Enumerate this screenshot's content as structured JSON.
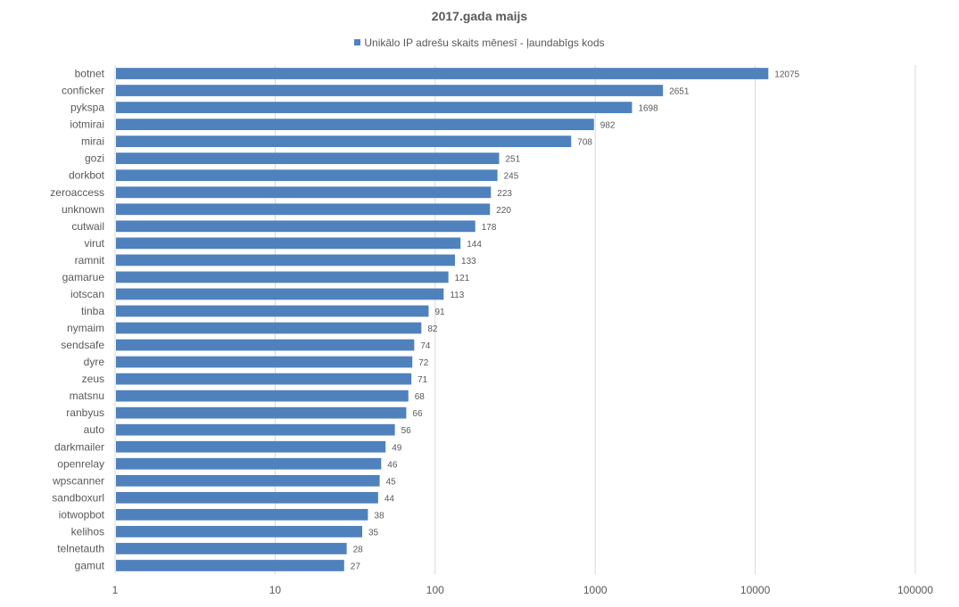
{
  "chart_data": {
    "type": "bar",
    "orientation": "horizontal",
    "title": "2017.gada maijs",
    "xscale": "log",
    "xlim": [
      1,
      100000
    ],
    "xticks": [
      "1",
      "10",
      "100",
      "1000",
      "10000",
      "100000"
    ],
    "grid": true,
    "legend_position": "top",
    "categories": [
      "botnet",
      "conficker",
      "pykspa",
      "iotmirai",
      "mirai",
      "gozi",
      "dorkbot",
      "zeroaccess",
      "unknown",
      "cutwail",
      "virut",
      "ramnit",
      "gamarue",
      "iotscan",
      "tinba",
      "nymaim",
      "sendsafe",
      "dyre",
      "zeus",
      "matsnu",
      "ranbyus",
      "auto",
      "darkmailer",
      "openrelay",
      "wpscanner",
      "sandboxurl",
      "iotwopbot",
      "kelihos",
      "telnetauth",
      "gamut"
    ],
    "series": [
      {
        "name": "Unikālo IP adrešu skaits mēnesī -  ļaundabīgs kods",
        "color": "#4f81bd",
        "values": [
          12075,
          2651,
          1698,
          982,
          708,
          251,
          245,
          223,
          220,
          178,
          144,
          133,
          121,
          113,
          91,
          82,
          74,
          72,
          71,
          68,
          66,
          56,
          49,
          46,
          45,
          44,
          38,
          35,
          28,
          27
        ]
      }
    ]
  }
}
